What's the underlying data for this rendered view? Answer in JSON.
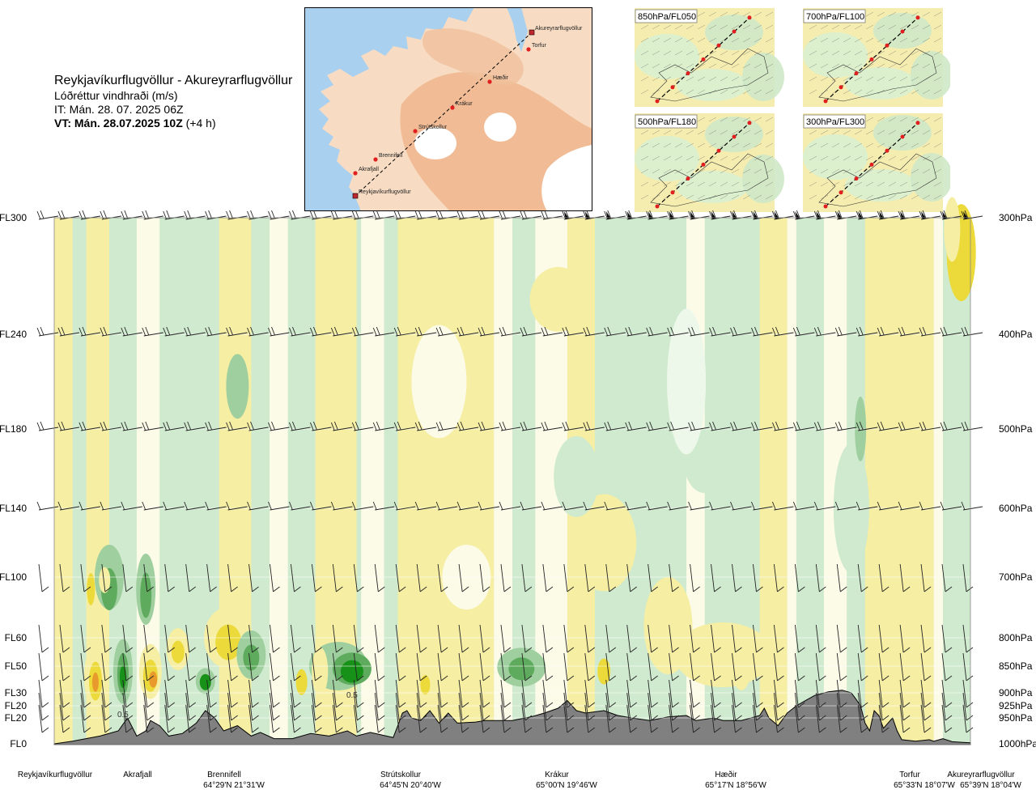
{
  "header": {
    "route": "Reykjavíkurflugvöllur - Akureyrarflugvöllur",
    "variable": "Lóðréttur vindhraði (m/s)",
    "issue_time": "IT: Mán. 28. 07. 2025 06Z",
    "valid_time_bold": "VT: Mán. 28.07.2025 10Z",
    "valid_time_offset": "(+4 h)"
  },
  "overview_map": {
    "places": [
      {
        "name": "Akureyrarflugvöllur",
        "type": "airport"
      },
      {
        "name": "Torfur",
        "type": "waypoint"
      },
      {
        "name": "Hæðir",
        "type": "waypoint"
      },
      {
        "name": "Krákur",
        "type": "waypoint"
      },
      {
        "name": "Strútskollur",
        "type": "waypoint"
      },
      {
        "name": "Brennifell",
        "type": "waypoint"
      },
      {
        "name": "Akrafjall",
        "type": "waypoint"
      },
      {
        "name": "Reykjavíkurflugvöllur",
        "type": "airport"
      }
    ]
  },
  "level_maps": [
    {
      "label": "850hPa/FL050"
    },
    {
      "label": "700hPa/FL100"
    },
    {
      "label": "500hPa/FL180"
    },
    {
      "label": "300hPa/FL300"
    }
  ],
  "chart_data": {
    "type": "heatmap",
    "x_stations": [
      {
        "name": "Reykjavíkurflugvöllur",
        "coord": "",
        "pos": 0.0
      },
      {
        "name": "Akrafjall",
        "coord": "",
        "pos": 0.09
      },
      {
        "name": "Brennifell",
        "coord": "64°29'N 21°31'W",
        "pos": 0.19
      },
      {
        "name": "Strútskollur",
        "coord": "64°45'N 20°40'W",
        "pos": 0.38
      },
      {
        "name": "Krákur",
        "coord": "65°00'N 19°46'W",
        "pos": 0.57
      },
      {
        "name": "Hæðir",
        "coord": "65°17'N 18°56'W",
        "pos": 0.75
      },
      {
        "name": "Torfur",
        "coord": "65°33'N 18°07'W",
        "pos": 0.95
      },
      {
        "name": "Akureyrarflugvöllur",
        "coord": "65°39'N 18°04'W",
        "pos": 1.0
      }
    ],
    "levels": [
      {
        "fl": "FL300",
        "hpa": "300hPa",
        "p": 300
      },
      {
        "fl": "FL240",
        "hpa": "400hPa",
        "p": 400
      },
      {
        "fl": "FL180",
        "hpa": "500hPa",
        "p": 500
      },
      {
        "fl": "FL140",
        "hpa": "600hPa",
        "p": 600
      },
      {
        "fl": "FL100",
        "hpa": "700hPa",
        "p": 700
      },
      {
        "fl": "FL60",
        "hpa": "800hPa",
        "p": 800
      },
      {
        "fl": "FL50",
        "hpa": "850hPa",
        "p": 850
      },
      {
        "fl": "FL30",
        "hpa": "900hPa",
        "p": 900
      },
      {
        "fl": "FL20",
        "hpa": "925hPa",
        "p": 925
      },
      {
        "fl": "FL20",
        "hpa": "950hPa",
        "p": 950
      },
      {
        "fl": "FL0",
        "hpa": "1000hPa",
        "p": 1000
      }
    ],
    "contour_labels": [
      {
        "text": "0.5",
        "pos": 0.075,
        "p": 942
      },
      {
        "text": "0.5",
        "pos": 0.325,
        "p": 903
      }
    ],
    "colors": {
      "strong_down": "#e89b2c",
      "down": "#ecd93a",
      "weak_down": "#f6eea3",
      "neutral": "#fcfbe8",
      "neutral_up": "#eef8ea",
      "weak_up": "#cfeace",
      "up": "#9fcf9f",
      "strong_up": "#5eab5e",
      "very_strong_up": "#179117",
      "terrain": "#808080"
    }
  }
}
